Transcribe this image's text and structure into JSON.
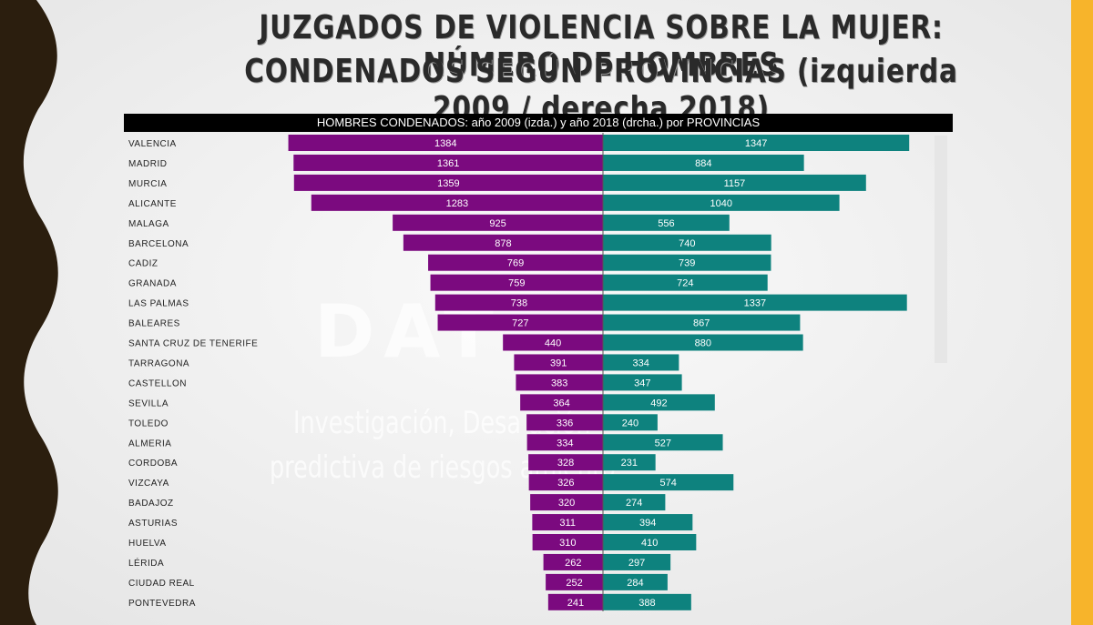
{
  "title": {
    "line1": "JUZGADOS DE VIOLENCIA SOBRE LA MUJER: NÚMERO DE HOMBRES",
    "line2": "CONDENADOS SEGÚN PROVINCIAS (izquierda 2009 / derecha 2018)"
  },
  "watermark": {
    "logo": "DAT",
    "line1": "Investigación, Desa         ación",
    "line2": "predictiva de riesgos                amiento"
  },
  "colors": {
    "left_bar": "#7b0a7f",
    "right_bar": "#0e827e",
    "accent_right": "#f7b42b",
    "left_band": "#2b1e0e"
  },
  "chart_data": {
    "type": "bar",
    "orientation": "diverging-horizontal",
    "title": "HOMBRES CONDENADOS: año 2009 (izda.) y año 2018 (drcha.) por PROVINCIAS",
    "categories": [
      "VALENCIA",
      "MADRID",
      "MURCIA",
      "ALICANTE",
      "MALAGA",
      "BARCELONA",
      "CADIZ",
      "GRANADA",
      "LAS PALMAS",
      "BALEARES",
      "SANTA CRUZ DE TENERIFE",
      "TARRAGONA",
      "CASTELLON",
      "SEVILLA",
      "TOLEDO",
      "ALMERIA",
      "CORDOBA",
      "VIZCAYA",
      "BADAJOZ",
      "ASTURIAS",
      "HUELVA",
      "LÉRIDA",
      "CIUDAD REAL",
      "PONTEVEDRA"
    ],
    "series": [
      {
        "values": [
          1384,
          1361,
          1359,
          1283,
          925,
          878,
          769,
          759,
          738,
          727,
          440,
          391,
          383,
          364,
          336,
          334,
          328,
          326,
          320,
          311,
          310,
          262,
          252,
          241
        ]
      },
      {
        "values": [
          1347,
          884,
          1157,
          1040,
          556,
          740,
          739,
          724,
          1337,
          867,
          880,
          334,
          347,
          492,
          240,
          527,
          231,
          574,
          274,
          394,
          410,
          297,
          284,
          388
        ]
      }
    ],
    "xlim": [
      0,
      1400
    ],
    "grid": false,
    "legend": "none"
  }
}
